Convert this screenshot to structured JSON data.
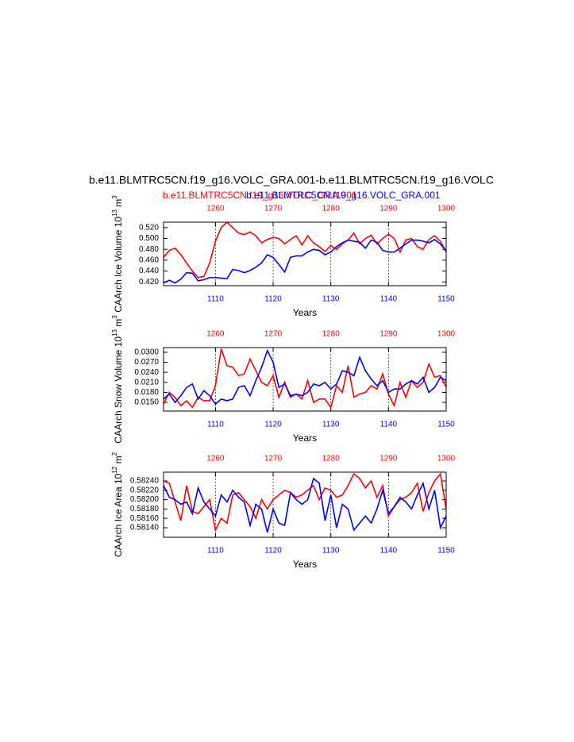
{
  "header": {
    "title": "b.e11.BLMTRC5CN.f19_g16.VOLC_GRA.001-b.e11.BLMTRC5CN.f19_g16.VOLC"
  },
  "chart_data": [
    {
      "type": "line",
      "ylabel": "CAArch Ice Volume 10",
      "ylabel_exp": "13",
      "ylabel_unit": " m",
      "ylabel_unit_exp": "3",
      "xlabel": "Years",
      "xlim": [
        1101,
        1150
      ],
      "xticks": [
        1110,
        1120,
        1130,
        1140,
        1150
      ],
      "x2lim": [
        1251,
        1300
      ],
      "x2ticks": [
        1260,
        1270,
        1280,
        1290,
        1300
      ],
      "ylim": [
        0.413,
        0.53
      ],
      "yticks": [
        {
          "value": 0.42,
          "label": "0.420"
        },
        {
          "value": 0.44,
          "label": "0.440"
        },
        {
          "value": 0.46,
          "label": "0.460"
        },
        {
          "value": 0.48,
          "label": "0.480"
        },
        {
          "value": 0.5,
          "label": "0.500"
        },
        {
          "value": 0.52,
          "label": "0.520"
        }
      ],
      "grid": true,
      "series": [
        {
          "name": "b.e11.BLMTRC5CN.f19_g16.VOLC_GRA.001",
          "color": "#ff0000",
          "axis": "x2",
          "values": [
            0.465,
            0.478,
            0.482,
            0.47,
            0.455,
            0.44,
            0.428,
            0.43,
            0.455,
            0.495,
            0.52,
            0.53,
            0.52,
            0.51,
            0.507,
            0.512,
            0.505,
            0.492,
            0.498,
            0.502,
            0.5,
            0.49,
            0.498,
            0.505,
            0.488,
            0.505,
            0.492,
            0.485,
            0.476,
            0.487,
            0.48,
            0.49,
            0.497,
            0.51,
            0.49,
            0.5,
            0.506,
            0.49,
            0.5,
            0.508,
            0.5,
            0.475,
            0.497,
            0.5,
            0.485,
            0.48,
            0.498,
            0.505,
            0.495,
            0.475
          ]
        },
        {
          "name": "b.e11.BLMTRC5CN.f19_g16.VOLC_GRA.001",
          "color": "#0000ff",
          "axis": "x",
          "values": [
            0.418,
            0.423,
            0.418,
            0.425,
            0.437,
            0.436,
            0.422,
            0.424,
            0.428,
            0.428,
            0.427,
            0.426,
            0.443,
            0.441,
            0.437,
            0.441,
            0.447,
            0.455,
            0.47,
            0.465,
            0.452,
            0.438,
            0.465,
            0.468,
            0.468,
            0.475,
            0.48,
            0.478,
            0.47,
            0.475,
            0.485,
            0.492,
            0.497,
            0.495,
            0.493,
            0.482,
            0.497,
            0.493,
            0.478,
            0.475,
            0.475,
            0.482,
            0.49,
            0.497,
            0.497,
            0.495,
            0.492,
            0.498,
            0.49,
            0.477
          ]
        }
      ]
    },
    {
      "type": "line",
      "ylabel": "CAArch Snow Volume 10",
      "ylabel_exp": "13",
      "ylabel_unit": " m",
      "ylabel_unit_exp": "3",
      "xlabel": "Years",
      "xlim": [
        1101,
        1150
      ],
      "xticks": [
        1110,
        1120,
        1130,
        1140,
        1150
      ],
      "x2lim": [
        1251,
        1300
      ],
      "x2ticks": [
        1260,
        1270,
        1280,
        1290,
        1300
      ],
      "ylim": [
        0.0124,
        0.0314
      ],
      "yticks": [
        {
          "value": 0.015,
          "label": "0.0150"
        },
        {
          "value": 0.018,
          "label": "0.0180"
        },
        {
          "value": 0.021,
          "label": "0.0210"
        },
        {
          "value": 0.024,
          "label": "0.0240"
        },
        {
          "value": 0.027,
          "label": "0.0270"
        },
        {
          "value": 0.03,
          "label": "0.0300"
        }
      ],
      "grid": true,
      "series": [
        {
          "color": "#ff0000",
          "axis": "x2",
          "values": [
            0.0145,
            0.018,
            0.0165,
            0.014,
            0.0155,
            0.0135,
            0.0165,
            0.0155,
            0.0155,
            0.02,
            0.031,
            0.026,
            0.0255,
            0.023,
            0.0235,
            0.028,
            0.0245,
            0.021,
            0.02,
            0.023,
            0.0165,
            0.021,
            0.0165,
            0.0175,
            0.016,
            0.0215,
            0.015,
            0.016,
            0.016,
            0.0135,
            0.02,
            0.018,
            0.026,
            0.0165,
            0.0175,
            0.018,
            0.02,
            0.019,
            0.0235,
            0.0175,
            0.014,
            0.021,
            0.0165,
            0.0215,
            0.0195,
            0.021,
            0.0265,
            0.0225,
            0.023,
            0.0195
          ]
        },
        {
          "color": "#0000ff",
          "axis": "x",
          "values": [
            0.016,
            0.0175,
            0.015,
            0.017,
            0.0195,
            0.0205,
            0.016,
            0.0185,
            0.017,
            0.0145,
            0.016,
            0.0155,
            0.016,
            0.0195,
            0.02,
            0.017,
            0.0215,
            0.0255,
            0.0305,
            0.027,
            0.0195,
            0.0205,
            0.017,
            0.0175,
            0.017,
            0.018,
            0.0205,
            0.02,
            0.021,
            0.019,
            0.0205,
            0.0245,
            0.024,
            0.023,
            0.0285,
            0.0245,
            0.022,
            0.02,
            0.0215,
            0.018,
            0.019,
            0.019,
            0.0205,
            0.0215,
            0.0205,
            0.0225,
            0.018,
            0.0195,
            0.0225,
            0.0215
          ]
        }
      ]
    },
    {
      "type": "line",
      "ylabel": "CAArch Ice Area 10",
      "ylabel_exp": "12",
      "ylabel_unit": " m",
      "ylabel_unit_exp": "2",
      "xlabel": "Years",
      "xlim": [
        1101,
        1150
      ],
      "xticks": [
        1110,
        1120,
        1130,
        1140,
        1150
      ],
      "x2lim": [
        1251,
        1300
      ],
      "x2ticks": [
        1260,
        1270,
        1280,
        1290,
        1300
      ],
      "ylim": [
        0.581197,
        0.582586
      ],
      "yticks": [
        {
          "value": 0.5814,
          "label": "0.58140"
        },
        {
          "value": 0.5816,
          "label": "0.58160"
        },
        {
          "value": 0.5818,
          "label": "0.58180"
        },
        {
          "value": 0.582,
          "label": "0.58200"
        },
        {
          "value": 0.5822,
          "label": "0.58220"
        },
        {
          "value": 0.5824,
          "label": "0.58240"
        }
      ],
      "grid": true,
      "series": [
        {
          "color": "#ff0000",
          "axis": "x2",
          "values": [
            0.5824,
            0.58235,
            0.58195,
            0.58155,
            0.5823,
            0.58175,
            0.5817,
            0.58185,
            0.582,
            0.58135,
            0.5816,
            0.5815,
            0.5821,
            0.58215,
            0.582,
            0.58185,
            0.5816,
            0.582,
            0.5818,
            0.582,
            0.5821,
            0.5822,
            0.58215,
            0.58205,
            0.5821,
            0.5822,
            0.5823,
            0.582,
            0.58225,
            0.5822,
            0.58205,
            0.5821,
            0.5823,
            0.58255,
            0.58245,
            0.58225,
            0.5824,
            0.58205,
            0.5823,
            0.58165,
            0.58185,
            0.582,
            0.58205,
            0.58215,
            0.58235,
            0.58175,
            0.58215,
            0.5824,
            0.58255,
            0.5818
          ]
        },
        {
          "color": "#0000ff",
          "axis": "x",
          "values": [
            0.5823,
            0.58205,
            0.582,
            0.5819,
            0.58195,
            0.5817,
            0.58225,
            0.58195,
            0.5818,
            0.58165,
            0.5821,
            0.58195,
            0.5822,
            0.58205,
            0.58195,
            0.58145,
            0.5819,
            0.5818,
            0.5813,
            0.5818,
            0.5815,
            0.58145,
            0.58215,
            0.582,
            0.5819,
            0.582,
            0.58245,
            0.58235,
            0.58155,
            0.5821,
            0.5814,
            0.5819,
            0.5818,
            0.58135,
            0.5815,
            0.58165,
            0.5815,
            0.5818,
            0.5822,
            0.5817,
            0.58185,
            0.58205,
            0.58195,
            0.5818,
            0.5821,
            0.58235,
            0.5818,
            0.5822,
            0.5814,
            0.58165
          ]
        }
      ]
    }
  ]
}
